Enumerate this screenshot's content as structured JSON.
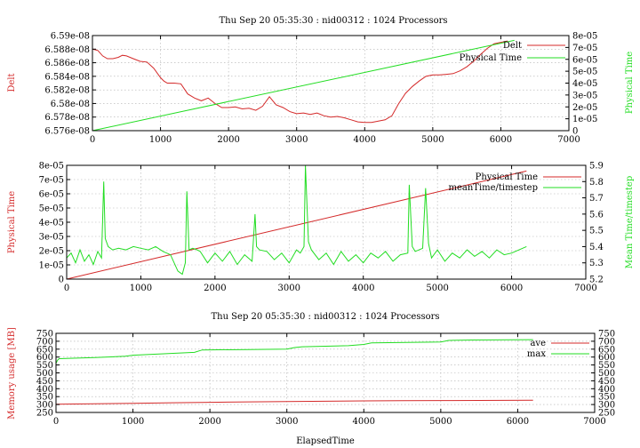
{
  "colors": {
    "series1": "#d42a2a",
    "series2": "#22dd22"
  },
  "chart_data": [
    {
      "type": "line",
      "title": "Thu Sep 20 05:35:30 : nid00312 : 1024 Processors",
      "xlabel": "",
      "ylabel_left": "Delt",
      "ylabel_right": "Physical Time",
      "xlim": [
        0,
        7000
      ],
      "ylim_left": [
        6.576e-08,
        6.59e-08
      ],
      "ylim_right": [
        0,
        8e-05
      ],
      "xticks": [
        "0",
        "1000",
        "2000",
        "3000",
        "4000",
        "5000",
        "6000",
        "7000"
      ],
      "yticks_left": [
        "6.576e-08",
        "6.578e-08",
        "6.58e-08",
        "6.582e-08",
        "6.584e-08",
        "6.586e-08",
        "6.588e-08",
        "6.59e-08"
      ],
      "yticks_right": [
        "0",
        "1e-05",
        "2e-05",
        "3e-05",
        "4e-05",
        "5e-05",
        "6e-05",
        "7e-05",
        "8e-05"
      ],
      "grid": true,
      "legend": "top-right",
      "series": [
        {
          "name": "Delt",
          "axis": "left",
          "x": [
            0,
            80,
            150,
            220,
            300,
            380,
            440,
            500,
            600,
            700,
            800,
            900,
            1000,
            1050,
            1100,
            1200,
            1300,
            1400,
            1500,
            1600,
            1700,
            1800,
            1900,
            2000,
            2100,
            2200,
            2300,
            2400,
            2500,
            2600,
            2650,
            2700,
            2800,
            2900,
            3000,
            3100,
            3200,
            3300,
            3400,
            3500,
            3600,
            3700,
            3800,
            3900,
            4000,
            4100,
            4200,
            4300,
            4400,
            4500,
            4600,
            4700,
            4800,
            4900,
            5000,
            5100,
            5200,
            5300,
            5400,
            5500,
            5600,
            5700,
            5800,
            5900,
            6000,
            6100
          ],
          "y": [
            6.588e-08,
            6.5878e-08,
            6.587e-08,
            6.5866e-08,
            6.5866e-08,
            6.5868e-08,
            6.5871e-08,
            6.587e-08,
            6.5866e-08,
            6.5862e-08,
            6.5861e-08,
            6.5852e-08,
            6.5838e-08,
            6.5833e-08,
            6.583e-08,
            6.583e-08,
            6.5829e-08,
            6.5814e-08,
            6.5808e-08,
            6.5804e-08,
            6.5808e-08,
            6.58e-08,
            6.5794e-08,
            6.5794e-08,
            6.5795e-08,
            6.5792e-08,
            6.5793e-08,
            6.579e-08,
            6.5796e-08,
            6.581e-08,
            6.5804e-08,
            6.5798e-08,
            6.5794e-08,
            6.5788e-08,
            6.5785e-08,
            6.5786e-08,
            6.5784e-08,
            6.5786e-08,
            6.5782e-08,
            6.578e-08,
            6.5781e-08,
            6.5779e-08,
            6.5776e-08,
            6.5773e-08,
            6.5772e-08,
            6.5772e-08,
            6.5774e-08,
            6.5776e-08,
            6.5782e-08,
            6.58e-08,
            6.5815e-08,
            6.5825e-08,
            6.5833e-08,
            6.584e-08,
            6.5842e-08,
            6.5842e-08,
            6.5843e-08,
            6.5844e-08,
            6.5848e-08,
            6.5854e-08,
            6.5862e-08,
            6.5872e-08,
            6.5881e-08,
            6.5888e-08,
            6.589e-08,
            6.5892e-08
          ]
        },
        {
          "name": "Physical Time",
          "axis": "right",
          "x": [
            0,
            6200
          ],
          "y": [
            0,
            7.6e-05
          ]
        }
      ]
    },
    {
      "type": "line",
      "title": "",
      "xlabel": "",
      "ylabel_left": "Physical Time",
      "ylabel_right": "Mean Time/timestep",
      "xlim": [
        0,
        7000
      ],
      "ylim_left": [
        0,
        8e-05
      ],
      "ylim_right": [
        5.2,
        5.9
      ],
      "xticks": [
        "0",
        "1000",
        "2000",
        "3000",
        "4000",
        "5000",
        "6000",
        "7000"
      ],
      "yticks_left": [
        "0",
        "1e-05",
        "2e-05",
        "3e-05",
        "4e-05",
        "5e-05",
        "6e-05",
        "7e-05",
        "8e-05"
      ],
      "yticks_right": [
        "5.2",
        "5.3",
        "5.4",
        "5.5",
        "5.6",
        "5.7",
        "5.8",
        "5.9"
      ],
      "grid": true,
      "legend": "top-right",
      "series": [
        {
          "name": "Physical Time",
          "axis": "left",
          "x": [
            0,
            6200
          ],
          "y": [
            0,
            7.6e-05
          ]
        },
        {
          "name": "meanTime/timestep",
          "axis": "right",
          "x": [
            0,
            60,
            120,
            180,
            240,
            300,
            360,
            420,
            470,
            500,
            520,
            560,
            620,
            700,
            800,
            900,
            1000,
            1100,
            1200,
            1300,
            1400,
            1500,
            1560,
            1600,
            1620,
            1650,
            1700,
            1760,
            1800,
            1900,
            2000,
            2100,
            2200,
            2300,
            2400,
            2500,
            2540,
            2560,
            2600,
            2700,
            2800,
            2900,
            3000,
            3100,
            3150,
            3200,
            3220,
            3260,
            3300,
            3400,
            3500,
            3600,
            3700,
            3800,
            3900,
            4000,
            4100,
            4200,
            4300,
            4400,
            4500,
            4600,
            4620,
            4660,
            4700,
            4800,
            4840,
            4880,
            4920,
            5000,
            5100,
            5200,
            5300,
            5400,
            5500,
            5600,
            5700,
            5800,
            5900,
            6000,
            6100,
            6200
          ],
          "y": [
            5.33,
            5.36,
            5.3,
            5.38,
            5.31,
            5.35,
            5.29,
            5.37,
            5.33,
            5.8,
            5.45,
            5.4,
            5.38,
            5.39,
            5.38,
            5.4,
            5.39,
            5.38,
            5.4,
            5.37,
            5.35,
            5.25,
            5.23,
            5.3,
            5.74,
            5.38,
            5.39,
            5.38,
            5.37,
            5.3,
            5.36,
            5.31,
            5.37,
            5.29,
            5.35,
            5.31,
            5.6,
            5.4,
            5.38,
            5.37,
            5.32,
            5.36,
            5.3,
            5.38,
            5.36,
            5.4,
            5.9,
            5.43,
            5.38,
            5.32,
            5.36,
            5.29,
            5.37,
            5.31,
            5.35,
            5.3,
            5.36,
            5.33,
            5.37,
            5.31,
            5.35,
            5.36,
            5.78,
            5.4,
            5.37,
            5.39,
            5.76,
            5.42,
            5.33,
            5.38,
            5.31,
            5.36,
            5.33,
            5.38,
            5.34,
            5.37,
            5.33,
            5.38,
            5.35,
            5.36,
            5.38,
            5.4
          ]
        }
      ]
    },
    {
      "type": "line",
      "title": "Thu Sep 20 05:35:30 : nid00312 : 1024 Processors",
      "xlabel": "ElapsedTime",
      "ylabel_left": "Memory usage [MB]",
      "ylabel_right": "",
      "xlim": [
        0,
        7000
      ],
      "ylim_left": [
        250,
        750
      ],
      "ylim_right": [
        250,
        750
      ],
      "xticks": [
        "0",
        "1000",
        "2000",
        "3000",
        "4000",
        "5000",
        "6000",
        "7000"
      ],
      "yticks_left": [
        "250",
        "300",
        "350",
        "400",
        "450",
        "500",
        "550",
        "600",
        "650",
        "700",
        "750"
      ],
      "yticks_right": [
        "250",
        "300",
        "350",
        "400",
        "450",
        "500",
        "550",
        "600",
        "650",
        "700",
        "750"
      ],
      "grid": true,
      "legend": "top-right",
      "series": [
        {
          "name": "ave",
          "axis": "left",
          "x": [
            0,
            500,
            1000,
            1500,
            2000,
            2500,
            3000,
            3500,
            4000,
            4500,
            5000,
            5500,
            6200
          ],
          "y": [
            302,
            305,
            308,
            311,
            314,
            317,
            319,
            321,
            323,
            324,
            325,
            326,
            327
          ]
        },
        {
          "name": "max",
          "axis": "left",
          "x": [
            0,
            20,
            40,
            500,
            900,
            1000,
            1800,
            1900,
            2500,
            3000,
            3100,
            3200,
            3800,
            4000,
            4100,
            5000,
            5100,
            5400,
            6200
          ],
          "y": [
            560,
            580,
            590,
            597,
            605,
            612,
            630,
            645,
            648,
            650,
            660,
            665,
            672,
            680,
            690,
            695,
            705,
            708,
            710
          ]
        }
      ]
    }
  ]
}
